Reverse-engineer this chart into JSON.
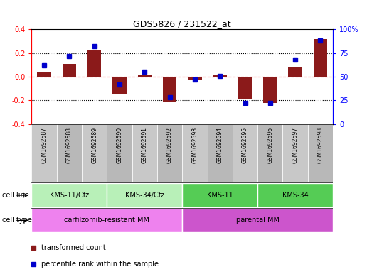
{
  "title": "GDS5826 / 231522_at",
  "samples": [
    "GSM1692587",
    "GSM1692588",
    "GSM1692589",
    "GSM1692590",
    "GSM1692591",
    "GSM1692592",
    "GSM1692593",
    "GSM1692594",
    "GSM1692595",
    "GSM1692596",
    "GSM1692597",
    "GSM1692598"
  ],
  "bar_values": [
    0.04,
    0.11,
    0.22,
    -0.15,
    0.01,
    -0.21,
    -0.03,
    0.01,
    -0.19,
    -0.22,
    0.08,
    0.32
  ],
  "dot_values": [
    62,
    72,
    82,
    42,
    55,
    28,
    47,
    51,
    22,
    22,
    68,
    88
  ],
  "bar_color": "#8B1A1A",
  "dot_color": "#0000CC",
  "ylim_left": [
    -0.4,
    0.4
  ],
  "ylim_right": [
    0,
    100
  ],
  "yticks_left": [
    -0.4,
    -0.2,
    0.0,
    0.2,
    0.4
  ],
  "yticks_right": [
    0,
    25,
    50,
    75,
    100
  ],
  "ytick_labels_right": [
    "0",
    "25",
    "50",
    "75",
    "100%"
  ],
  "cell_line_groups": [
    {
      "label": "KMS-11/Cfz",
      "start": 0,
      "end": 2,
      "color": "#B8F0B8"
    },
    {
      "label": "KMS-34/Cfz",
      "start": 3,
      "end": 5,
      "color": "#B8F0B8"
    },
    {
      "label": "KMS-11",
      "start": 6,
      "end": 8,
      "color": "#55CC55"
    },
    {
      "label": "KMS-34",
      "start": 9,
      "end": 11,
      "color": "#55CC55"
    }
  ],
  "cell_type_groups": [
    {
      "label": "carfilzomib-resistant MM",
      "start": 0,
      "end": 5,
      "color": "#EE82EE"
    },
    {
      "label": "parental MM",
      "start": 6,
      "end": 11,
      "color": "#CC55CC"
    }
  ],
  "legend_items": [
    {
      "label": "transformed count",
      "color": "#8B1A1A"
    },
    {
      "label": "percentile rank within the sample",
      "color": "#0000CC"
    }
  ],
  "cell_line_label": "cell line",
  "cell_type_label": "cell type",
  "sample_box_color": "#C8C8C8",
  "sample_box_edge": "#AAAAAA"
}
